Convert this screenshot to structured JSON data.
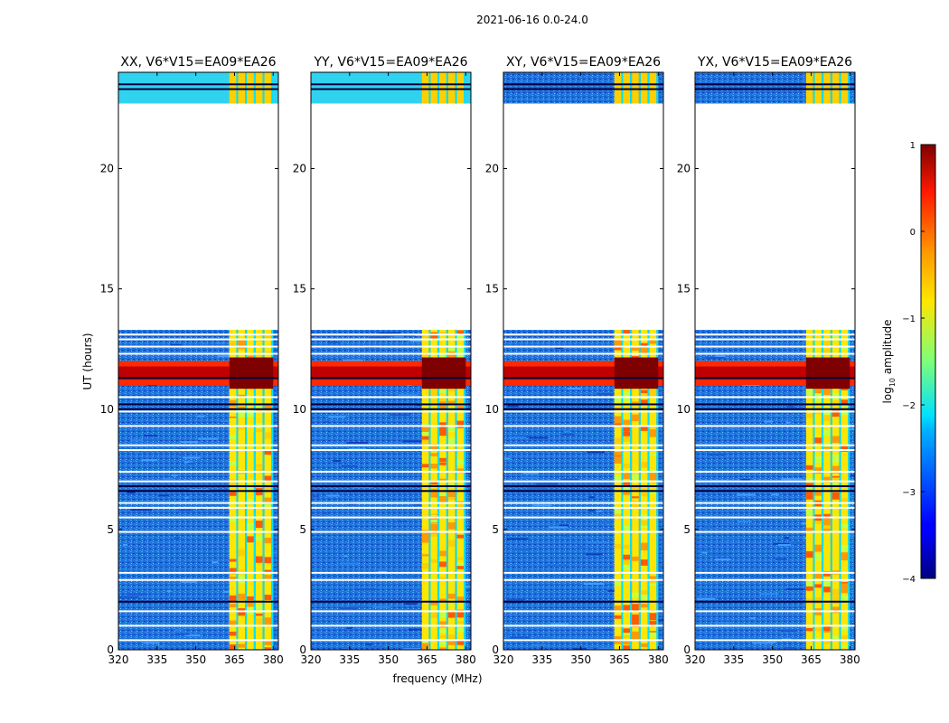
{
  "figure": {
    "suptitle": "2021-06-16 0.0-24.0"
  },
  "chart_data": {
    "type": "heatmap",
    "x_axis": {
      "label": "frequency (MHz)",
      "range": [
        320,
        382
      ],
      "ticks": [
        320,
        335,
        350,
        365,
        380
      ],
      "tick_labels": [
        "320",
        "335",
        "350",
        "365",
        "380"
      ]
    },
    "y_axis": {
      "label": "UT (hours)",
      "range": [
        0,
        24
      ],
      "ticks": [
        0,
        5,
        10,
        15,
        20
      ],
      "tick_labels": [
        "0",
        "5",
        "10",
        "15",
        "20"
      ]
    },
    "gap_hours": [
      13.3,
      22.7
    ],
    "colorbar": {
      "label": "log10 amplitude",
      "label_main": "log",
      "label_sub": "10",
      "label_tail": " amplitude",
      "range": [
        -4,
        1
      ],
      "ticks": [
        1,
        0,
        -1,
        -2,
        -3,
        -4
      ],
      "tick_labels": [
        "1",
        "0",
        "−1",
        "−2",
        "−3",
        "−4"
      ],
      "colormap": "jet"
    },
    "panels": [
      {
        "title": "XX, V6*V15=EA09*EA26",
        "polarization": "XX"
      },
      {
        "title": "YY, V6*V15=EA09*EA26",
        "polarization": "YY"
      },
      {
        "title": "XY, V6*V15=EA09*EA26",
        "polarization": "XY"
      },
      {
        "title": "YX, V6*V15=EA09*EA26",
        "polarization": "YX"
      }
    ],
    "rfi_band_mhz": [
      363,
      380
    ],
    "strong_rfi_hours": [
      11.0,
      12.0
    ]
  }
}
